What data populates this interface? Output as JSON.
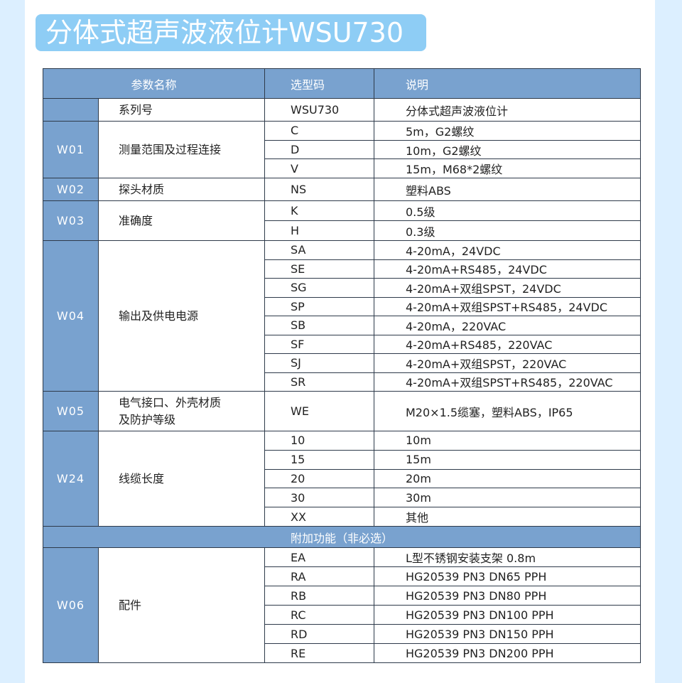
{
  "title": "分体式超声波液位计WSU730",
  "colors": {
    "accent": "#79a2cf",
    "title_bg": "#8ecdf5"
  },
  "header": {
    "param": "参数名称",
    "code": "选型码",
    "desc": "说明"
  },
  "groups": [
    {
      "code": "",
      "name": "系列号",
      "rows": [
        {
          "code": "WSU730",
          "desc": "分体式超声波液位计"
        }
      ]
    },
    {
      "code": "W01",
      "name": "测量范围及过程连接",
      "rows": [
        {
          "code": "C",
          "desc": "5m，G2螺纹"
        },
        {
          "code": "D",
          "desc": "10m，G2螺纹"
        },
        {
          "code": "V",
          "desc": "15m，M68*2螺纹"
        }
      ]
    },
    {
      "code": "W02",
      "name": "探头材质",
      "rows": [
        {
          "code": "NS",
          "desc": "塑料ABS"
        }
      ]
    },
    {
      "code": "W03",
      "name": "准确度",
      "rows": [
        {
          "code": "K",
          "desc": "0.5级"
        },
        {
          "code": "H",
          "desc": "0.3级"
        }
      ]
    },
    {
      "code": "W04",
      "name": "输出及供电电源",
      "rows": [
        {
          "code": "SA",
          "desc": "4-20mA，24VDC"
        },
        {
          "code": "SE",
          "desc": "4-20mA+RS485，24VDC"
        },
        {
          "code": "SG",
          "desc": "4-20mA+双组SPST，24VDC"
        },
        {
          "code": "SP",
          "desc": "4-20mA+双组SPST+RS485，24VDC"
        },
        {
          "code": "SB",
          "desc": "4-20mA，220VAC"
        },
        {
          "code": "SF",
          "desc": "4-20mA+RS485，220VAC"
        },
        {
          "code": "SJ",
          "desc": "4-20mA+双组SPST，220VAC"
        },
        {
          "code": "SR",
          "desc": "4-20mA+双组SPST+RS485，220VAC"
        }
      ]
    },
    {
      "code": "W05",
      "name": "电气接口、外壳材质及防护等级",
      "rows": [
        {
          "code": "WE",
          "desc": "M20×1.5缆塞，塑料ABS，IP65"
        }
      ]
    },
    {
      "code": "W24",
      "name": "线缆长度",
      "rows": [
        {
          "code": "10",
          "desc": "10m"
        },
        {
          "code": "15",
          "desc": "15m"
        },
        {
          "code": "20",
          "desc": "20m"
        },
        {
          "code": "30",
          "desc": "30m"
        },
        {
          "code": "XX",
          "desc": "其他"
        }
      ]
    }
  ],
  "addon_label": "附加功能（非必选）",
  "addon_groups": [
    {
      "code": "W06",
      "name": "配件",
      "rows": [
        {
          "code": "EA",
          "desc": "L型不锈钢安装支架 0.8m"
        },
        {
          "code": "RA",
          "desc": "HG20539 PN3 DN65 PPH"
        },
        {
          "code": "RB",
          "desc": "HG20539 PN3 DN80 PPH"
        },
        {
          "code": "RC",
          "desc": "HG20539 PN3 DN100 PPH"
        },
        {
          "code": "RD",
          "desc": "HG20539 PN3 DN150 PPH"
        },
        {
          "code": "RE",
          "desc": "HG20539 PN3 DN200 PPH"
        }
      ]
    }
  ]
}
